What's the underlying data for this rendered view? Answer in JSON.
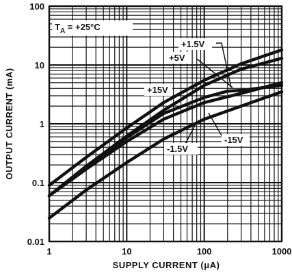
{
  "chart_data": {
    "type": "line",
    "title": "",
    "xlabel": "SUPPLY CURRENT (μA)",
    "ylabel": "OUTPUT CURRENT (mA)",
    "x_scale": "log",
    "y_scale": "log",
    "xlim": [
      1,
      1000
    ],
    "ylim": [
      0.01,
      100
    ],
    "grid": true,
    "x_ticks": [
      {
        "value": 1,
        "label": "1"
      },
      {
        "value": 10,
        "label": "10"
      },
      {
        "value": 100,
        "label": "100"
      },
      {
        "value": 1000,
        "label": "1000"
      }
    ],
    "y_ticks": [
      {
        "value": 100,
        "label": "100"
      },
      {
        "value": 10,
        "label": "10"
      },
      {
        "value": 1,
        "label": "1"
      },
      {
        "value": 0.1,
        "label": "0.1"
      },
      {
        "value": 0.01,
        "label": "0.01"
      }
    ],
    "condition": {
      "prefix": "T",
      "subscript": "A",
      "text": " = +25°C"
    },
    "series": [
      {
        "name": "+15V",
        "x": [
          1,
          3,
          10,
          30,
          100,
          300,
          1000
        ],
        "y": [
          0.09,
          0.27,
          0.85,
          2.3,
          5.5,
          10.5,
          18
        ]
      },
      {
        "name": "+5V",
        "x": [
          1,
          3,
          10,
          30,
          100,
          300,
          1000
        ],
        "y": [
          0.06,
          0.19,
          0.62,
          1.7,
          4.5,
          8.5,
          13
        ]
      },
      {
        "name": "+1.5V",
        "x": [
          1,
          3,
          10,
          30,
          100,
          200,
          300,
          1000
        ],
        "y": [
          0.06,
          0.19,
          0.58,
          1.5,
          2.8,
          3.6,
          3.7,
          4.5
        ]
      },
      {
        "name": "-15V",
        "x": [
          1,
          3,
          10,
          30,
          100,
          300,
          1000
        ],
        "y": [
          0.06,
          0.17,
          0.5,
          1.2,
          2.3,
          3.3,
          5.0
        ]
      },
      {
        "name": "-1.5V",
        "x": [
          1,
          3,
          10,
          30,
          100,
          300,
          1000
        ],
        "y": [
          0.025,
          0.075,
          0.22,
          0.55,
          1.2,
          2.0,
          3.5
        ]
      }
    ],
    "annotations": [
      {
        "text": "+1.5V",
        "series": "+1.5V"
      },
      {
        "text": "+5V",
        "series": "+5V"
      },
      {
        "text": "+15V",
        "series": "+15V"
      },
      {
        "text": "-15V",
        "series": "-15V"
      },
      {
        "text": "-1.5V",
        "series": "-1.5V"
      }
    ]
  }
}
